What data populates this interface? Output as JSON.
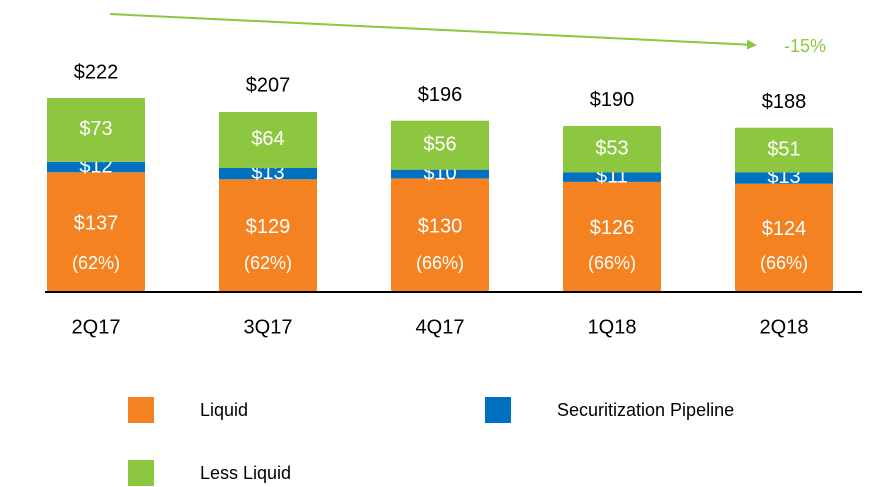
{
  "chart_data": {
    "type": "stacked_bar",
    "categories": [
      "2Q17",
      "3Q17",
      "4Q17",
      "1Q18",
      "2Q18"
    ],
    "series": [
      {
        "name": "Liquid",
        "color": "#f58220",
        "values": [
          137,
          129,
          130,
          126,
          124
        ],
        "value_labels": [
          "$137",
          "$129",
          "$130",
          "$126",
          "$124"
        ]
      },
      {
        "name": "Securitization Pipeline",
        "color": "#0070c0",
        "values": [
          12,
          13,
          10,
          11,
          13
        ],
        "value_labels": [
          "$12",
          "$13",
          "$10",
          "$11",
          "$13"
        ]
      },
      {
        "name": "Less Liquid",
        "color": "#8dc63f",
        "values": [
          73,
          64,
          56,
          53,
          51
        ],
        "value_labels": [
          "$73",
          "$64",
          "$56",
          "$53",
          "$51"
        ]
      }
    ],
    "totals": [
      222,
      207,
      196,
      190,
      188
    ],
    "total_labels": [
      "$222",
      "$207",
      "$196",
      "$190",
      "$188"
    ],
    "liquid_share_labels": [
      "(62%)",
      "(62%)",
      "(66%)",
      "(66%)",
      "(66%)"
    ],
    "annotation": "-15%",
    "trend_color": "#8dc63f"
  }
}
